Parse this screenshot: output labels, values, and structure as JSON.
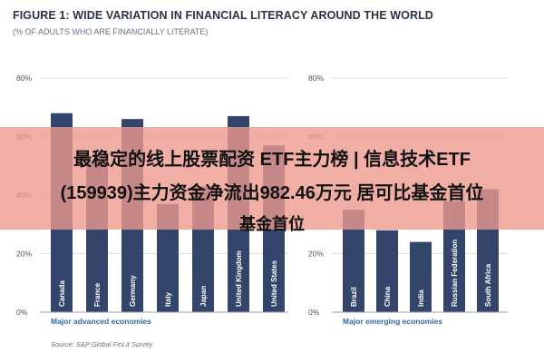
{
  "title": "FIGURE 1: WIDE VARIATION IN FINANCIAL LITERACY AROUND THE WORLD",
  "subtitle": "(% OF ADULTS WHO ARE FINANCIALLY LITERATE)",
  "source": "Source: S&P Global FinLit Survey",
  "overlay": {
    "line1": "最稳定的线上股票配资 ETF主力榜 | 信息技术ETF",
    "line2": "(159939)主力资金净流出982.46万元 居可比基金首位",
    "line3": "基金首位"
  },
  "colors": {
    "bar": "#33456b",
    "group_label": "#2f6aa6",
    "overlay": "#ec9a8e"
  },
  "chart_data": [
    {
      "type": "bar",
      "group_label": "Major advanced economies",
      "categories": [
        "Canada",
        "France",
        "Germany",
        "Italy",
        "Japan",
        "United Kingdom",
        "United States"
      ],
      "values": [
        68,
        52,
        66,
        37,
        43,
        67,
        57
      ],
      "ylim": [
        0,
        80
      ],
      "yticks": [
        "0%",
        "20%",
        "40%",
        "60%",
        "80%"
      ],
      "grid": true
    },
    {
      "type": "bar",
      "group_label": "Major emerging economies",
      "categories": [
        "Brazil",
        "China",
        "India",
        "Russian Federation",
        "South Africa"
      ],
      "values": [
        35,
        28,
        24,
        38,
        42
      ],
      "ylim": [
        0,
        80
      ],
      "yticks": [
        "0%",
        "20%",
        "40%",
        "60%",
        "80%"
      ],
      "grid": true
    }
  ]
}
